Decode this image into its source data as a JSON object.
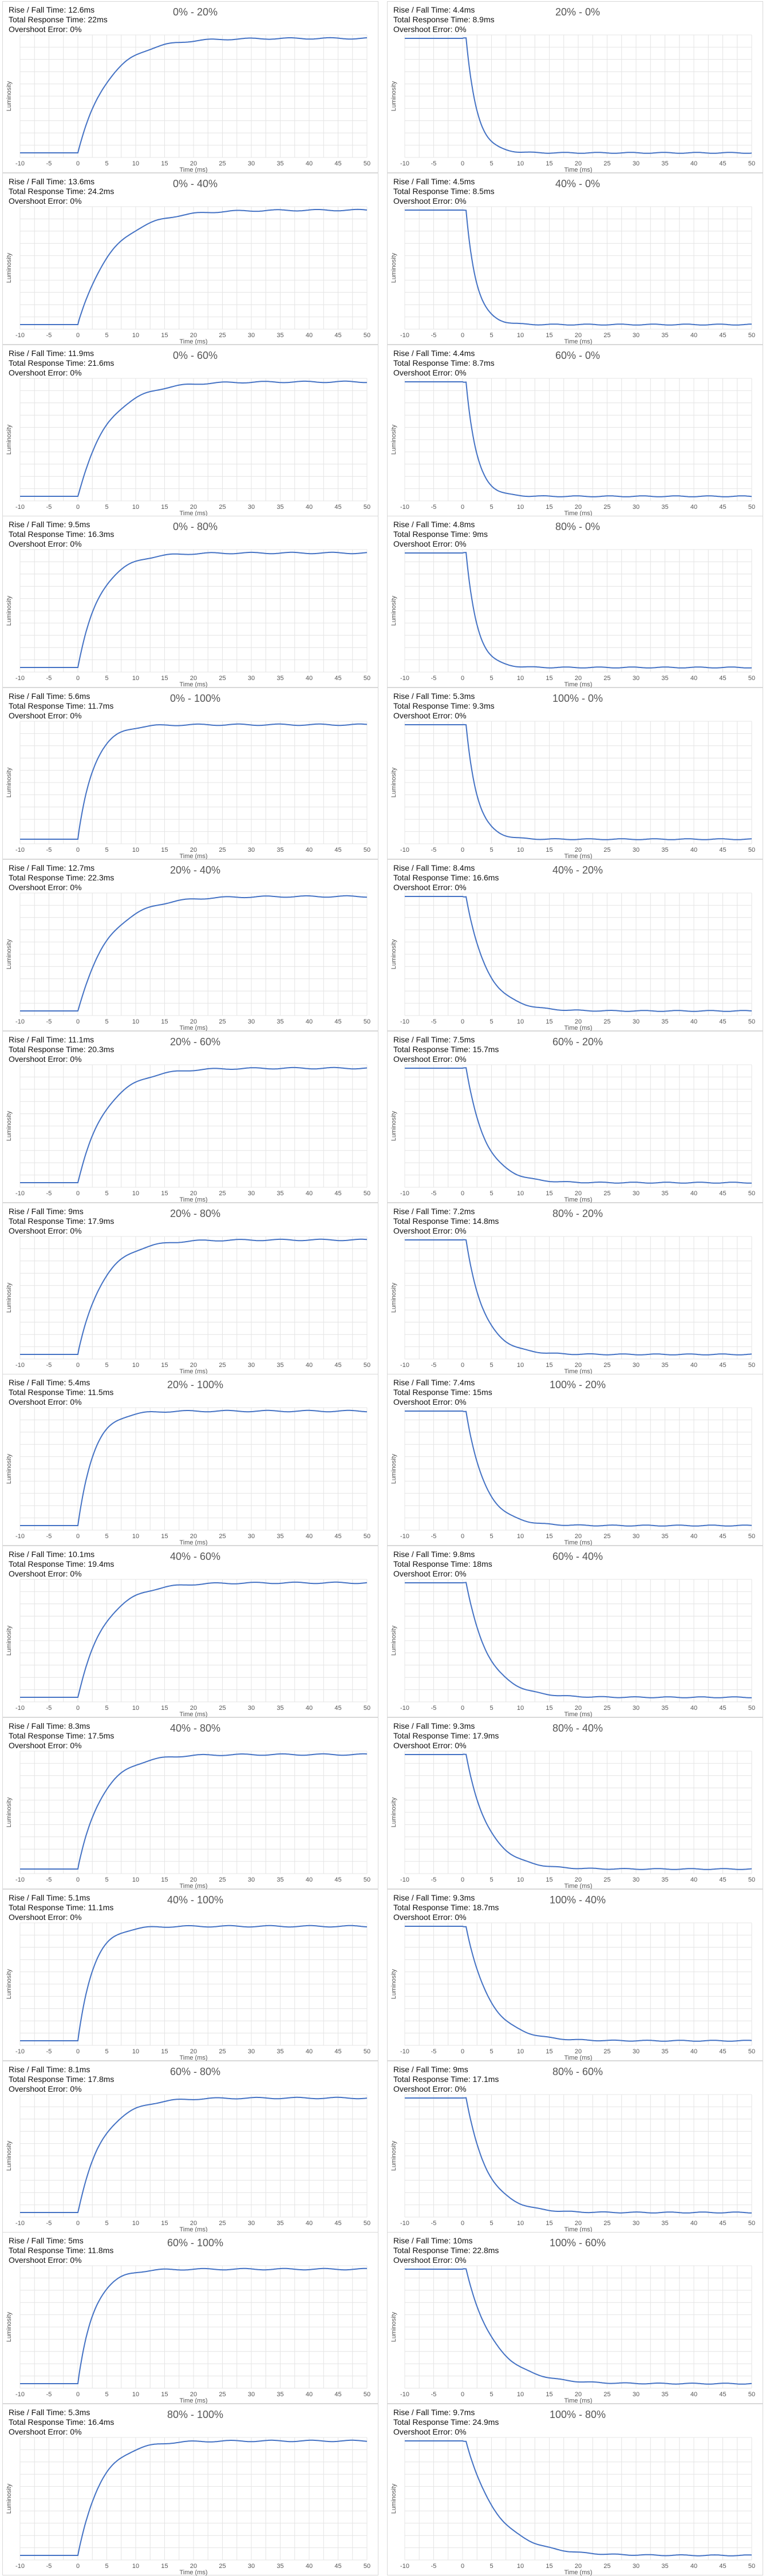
{
  "page": {
    "background": "#ffffff"
  },
  "style": {
    "line_color": "#4472c4",
    "grid_color": "#e4e4e4"
  },
  "stat_labels": {
    "rise_fall": "Rise / Fall Time: ",
    "total": "Total Response Time: ",
    "overshoot": "Overshoot Error: "
  },
  "chart_data": [
    {
      "type": "line",
      "title": "0% - 20%",
      "direction": "rise",
      "rise_fall_time": "12.6ms",
      "total_response_time": "22ms",
      "overshoot_error": "0%",
      "xlabel": "Time (ms)",
      "ylabel": "Luminosity",
      "xlim": [
        -10,
        50
      ],
      "xticks": [
        -10,
        -5,
        0,
        5,
        10,
        15,
        20,
        25,
        30,
        35,
        40,
        45,
        50
      ]
    },
    {
      "type": "line",
      "title": "20% - 0%",
      "direction": "fall",
      "rise_fall_time": "4.4ms",
      "total_response_time": "8.9ms",
      "overshoot_error": "0%",
      "xlabel": "Time (ms)",
      "ylabel": "Luminosity",
      "xlim": [
        -10,
        50
      ],
      "xticks": [
        -10,
        -5,
        0,
        5,
        10,
        15,
        20,
        25,
        30,
        35,
        40,
        45,
        50
      ]
    },
    {
      "type": "line",
      "title": "0% - 40%",
      "direction": "rise",
      "rise_fall_time": "13.6ms",
      "total_response_time": "24.2ms",
      "overshoot_error": "0%",
      "xlabel": "Time (ms)",
      "ylabel": "Luminosity",
      "xlim": [
        -10,
        50
      ],
      "xticks": [
        -10,
        -5,
        0,
        5,
        10,
        15,
        20,
        25,
        30,
        35,
        40,
        45,
        50
      ]
    },
    {
      "type": "line",
      "title": "40% - 0%",
      "direction": "fall",
      "rise_fall_time": "4.5ms",
      "total_response_time": "8.5ms",
      "overshoot_error": "0%",
      "xlabel": "Time (ms)",
      "ylabel": "Luminosity",
      "xlim": [
        -10,
        50
      ],
      "xticks": [
        -10,
        -5,
        0,
        5,
        10,
        15,
        20,
        25,
        30,
        35,
        40,
        45,
        50
      ]
    },
    {
      "type": "line",
      "title": "0% - 60%",
      "direction": "rise",
      "rise_fall_time": "11.9ms",
      "total_response_time": "21.6ms",
      "overshoot_error": "0%",
      "xlabel": "Time (ms)",
      "ylabel": "Luminosity",
      "xlim": [
        -10,
        50
      ],
      "xticks": [
        -10,
        -5,
        0,
        5,
        10,
        15,
        20,
        25,
        30,
        35,
        40,
        45,
        50
      ]
    },
    {
      "type": "line",
      "title": "60% - 0%",
      "direction": "fall",
      "rise_fall_time": "4.4ms",
      "total_response_time": "8.7ms",
      "overshoot_error": "0%",
      "xlabel": "Time (ms)",
      "ylabel": "Luminosity",
      "xlim": [
        -10,
        50
      ],
      "xticks": [
        -10,
        -5,
        0,
        5,
        10,
        15,
        20,
        25,
        30,
        35,
        40,
        45,
        50
      ]
    },
    {
      "type": "line",
      "title": "0% - 80%",
      "direction": "rise",
      "rise_fall_time": "9.5ms",
      "total_response_time": "16.3ms",
      "overshoot_error": "0%",
      "xlabel": "Time (ms)",
      "ylabel": "Luminosity",
      "xlim": [
        -10,
        50
      ],
      "xticks": [
        -10,
        -5,
        0,
        5,
        10,
        15,
        20,
        25,
        30,
        35,
        40,
        45,
        50
      ]
    },
    {
      "type": "line",
      "title": "80% - 0%",
      "direction": "fall",
      "rise_fall_time": "4.8ms",
      "total_response_time": "9ms",
      "overshoot_error": "0%",
      "xlabel": "Time (ms)",
      "ylabel": "Luminosity",
      "xlim": [
        -10,
        50
      ],
      "xticks": [
        -10,
        -5,
        0,
        5,
        10,
        15,
        20,
        25,
        30,
        35,
        40,
        45,
        50
      ]
    },
    {
      "type": "line",
      "title": "0% - 100%",
      "direction": "rise",
      "rise_fall_time": "5.6ms",
      "total_response_time": "11.7ms",
      "overshoot_error": "0%",
      "xlabel": "Time (ms)",
      "ylabel": "Luminosity",
      "xlim": [
        -10,
        50
      ],
      "xticks": [
        -10,
        -5,
        0,
        5,
        10,
        15,
        20,
        25,
        30,
        35,
        40,
        45,
        50
      ]
    },
    {
      "type": "line",
      "title": "100% - 0%",
      "direction": "fall",
      "rise_fall_time": "5.3ms",
      "total_response_time": "9.3ms",
      "overshoot_error": "0%",
      "xlabel": "Time (ms)",
      "ylabel": "Luminosity",
      "xlim": [
        -10,
        50
      ],
      "xticks": [
        -10,
        -5,
        0,
        5,
        10,
        15,
        20,
        25,
        30,
        35,
        40,
        45,
        50
      ]
    },
    {
      "type": "line",
      "title": "20% - 40%",
      "direction": "rise",
      "rise_fall_time": "12.7ms",
      "total_response_time": "22.3ms",
      "overshoot_error": "0%",
      "xlabel": "Time (ms)",
      "ylabel": "Luminosity",
      "xlim": [
        -10,
        50
      ],
      "xticks": [
        -10,
        -5,
        0,
        5,
        10,
        15,
        20,
        25,
        30,
        35,
        40,
        45,
        50
      ]
    },
    {
      "type": "line",
      "title": "40% - 20%",
      "direction": "fall",
      "rise_fall_time": "8.4ms",
      "total_response_time": "16.6ms",
      "overshoot_error": "0%",
      "xlabel": "Time (ms)",
      "ylabel": "Luminosity",
      "xlim": [
        -10,
        50
      ],
      "xticks": [
        -10,
        -5,
        0,
        5,
        10,
        15,
        20,
        25,
        30,
        35,
        40,
        45,
        50
      ]
    },
    {
      "type": "line",
      "title": "20% - 60%",
      "direction": "rise",
      "rise_fall_time": "11.1ms",
      "total_response_time": "20.3ms",
      "overshoot_error": "0%",
      "xlabel": "Time (ms)",
      "ylabel": "Luminosity",
      "xlim": [
        -10,
        50
      ],
      "xticks": [
        -10,
        -5,
        0,
        5,
        10,
        15,
        20,
        25,
        30,
        35,
        40,
        45,
        50
      ]
    },
    {
      "type": "line",
      "title": "60% - 20%",
      "direction": "fall",
      "rise_fall_time": "7.5ms",
      "total_response_time": "15.7ms",
      "overshoot_error": "0%",
      "xlabel": "Time (ms)",
      "ylabel": "Luminosity",
      "xlim": [
        -10,
        50
      ],
      "xticks": [
        -10,
        -5,
        0,
        5,
        10,
        15,
        20,
        25,
        30,
        35,
        40,
        45,
        50
      ]
    },
    {
      "type": "line",
      "title": "20% - 80%",
      "direction": "rise",
      "rise_fall_time": "9ms",
      "total_response_time": "17.9ms",
      "overshoot_error": "0%",
      "xlabel": "Time (ms)",
      "ylabel": "Luminosity",
      "xlim": [
        -10,
        50
      ],
      "xticks": [
        -10,
        -5,
        0,
        5,
        10,
        15,
        20,
        25,
        30,
        35,
        40,
        45,
        50
      ]
    },
    {
      "type": "line",
      "title": "80% - 20%",
      "direction": "fall",
      "rise_fall_time": "7.2ms",
      "total_response_time": "14.8ms",
      "overshoot_error": "0%",
      "xlabel": "Time (ms)",
      "ylabel": "Luminosity",
      "xlim": [
        -10,
        50
      ],
      "xticks": [
        -10,
        -5,
        0,
        5,
        10,
        15,
        20,
        25,
        30,
        35,
        40,
        45,
        50
      ]
    },
    {
      "type": "line",
      "title": "20% - 100%",
      "direction": "rise",
      "rise_fall_time": "5.4ms",
      "total_response_time": "11.5ms",
      "overshoot_error": "0%",
      "xlabel": "Time (ms)",
      "ylabel": "Luminosity",
      "xlim": [
        -10,
        50
      ],
      "xticks": [
        -10,
        -5,
        0,
        5,
        10,
        15,
        20,
        25,
        30,
        35,
        40,
        45,
        50
      ]
    },
    {
      "type": "line",
      "title": "100% - 20%",
      "direction": "fall",
      "rise_fall_time": "7.4ms",
      "total_response_time": "15ms",
      "overshoot_error": "0%",
      "xlabel": "Time (ms)",
      "ylabel": "Luminosity",
      "xlim": [
        -10,
        50
      ],
      "xticks": [
        -10,
        -5,
        0,
        5,
        10,
        15,
        20,
        25,
        30,
        35,
        40,
        45,
        50
      ]
    },
    {
      "type": "line",
      "title": "40% - 60%",
      "direction": "rise",
      "rise_fall_time": "10.1ms",
      "total_response_time": "19.4ms",
      "overshoot_error": "0%",
      "xlabel": "Time (ms)",
      "ylabel": "Luminosity",
      "xlim": [
        -10,
        50
      ],
      "xticks": [
        -10,
        -5,
        0,
        5,
        10,
        15,
        20,
        25,
        30,
        35,
        40,
        45,
        50
      ]
    },
    {
      "type": "line",
      "title": "60% - 40%",
      "direction": "fall",
      "rise_fall_time": "9.8ms",
      "total_response_time": "18ms",
      "overshoot_error": "0%",
      "xlabel": "Time (ms)",
      "ylabel": "Luminosity",
      "xlim": [
        -10,
        50
      ],
      "xticks": [
        -10,
        -5,
        0,
        5,
        10,
        15,
        20,
        25,
        30,
        35,
        40,
        45,
        50
      ]
    },
    {
      "type": "line",
      "title": "40% - 80%",
      "direction": "rise",
      "rise_fall_time": "8.3ms",
      "total_response_time": "17.5ms",
      "overshoot_error": "0%",
      "xlabel": "Time (ms)",
      "ylabel": "Luminosity",
      "xlim": [
        -10,
        50
      ],
      "xticks": [
        -10,
        -5,
        0,
        5,
        10,
        15,
        20,
        25,
        30,
        35,
        40,
        45,
        50
      ]
    },
    {
      "type": "line",
      "title": "80% - 40%",
      "direction": "fall",
      "rise_fall_time": "9.3ms",
      "total_response_time": "17.9ms",
      "overshoot_error": "0%",
      "xlabel": "Time (ms)",
      "ylabel": "Luminosity",
      "xlim": [
        -10,
        50
      ],
      "xticks": [
        -10,
        -5,
        0,
        5,
        10,
        15,
        20,
        25,
        30,
        35,
        40,
        45,
        50
      ]
    },
    {
      "type": "line",
      "title": "40% - 100%",
      "direction": "rise",
      "rise_fall_time": "5.1ms",
      "total_response_time": "11.1ms",
      "overshoot_error": "0%",
      "xlabel": "Time (ms)",
      "ylabel": "Luminosity",
      "xlim": [
        -10,
        50
      ],
      "xticks": [
        -10,
        -5,
        0,
        5,
        10,
        15,
        20,
        25,
        30,
        35,
        40,
        45,
        50
      ]
    },
    {
      "type": "line",
      "title": "100% - 40%",
      "direction": "fall",
      "rise_fall_time": "9.3ms",
      "total_response_time": "18.7ms",
      "overshoot_error": "0%",
      "xlabel": "Time (ms)",
      "ylabel": "Luminosity",
      "xlim": [
        -10,
        50
      ],
      "xticks": [
        -10,
        -5,
        0,
        5,
        10,
        15,
        20,
        25,
        30,
        35,
        40,
        45,
        50
      ]
    },
    {
      "type": "line",
      "title": "60% - 80%",
      "direction": "rise",
      "rise_fall_time": "8.1ms",
      "total_response_time": "17.8ms",
      "overshoot_error": "0%",
      "xlabel": "Time (ms)",
      "ylabel": "Luminosity",
      "xlim": [
        -10,
        50
      ],
      "xticks": [
        -10,
        -5,
        0,
        5,
        10,
        15,
        20,
        25,
        30,
        35,
        40,
        45,
        50
      ]
    },
    {
      "type": "line",
      "title": "80% - 60%",
      "direction": "fall",
      "rise_fall_time": "9ms",
      "total_response_time": "17.1ms",
      "overshoot_error": "0%",
      "xlabel": "Time (ms)",
      "ylabel": "Luminosity",
      "xlim": [
        -10,
        50
      ],
      "xticks": [
        -10,
        -5,
        0,
        5,
        10,
        15,
        20,
        25,
        30,
        35,
        40,
        45,
        50
      ]
    },
    {
      "type": "line",
      "title": "60% - 100%",
      "direction": "rise",
      "rise_fall_time": "5ms",
      "total_response_time": "11.8ms",
      "overshoot_error": "0%",
      "xlabel": "Time (ms)",
      "ylabel": "Luminosity",
      "xlim": [
        -10,
        50
      ],
      "xticks": [
        -10,
        -5,
        0,
        5,
        10,
        15,
        20,
        25,
        30,
        35,
        40,
        45,
        50
      ]
    },
    {
      "type": "line",
      "title": "100% - 60%",
      "direction": "fall",
      "rise_fall_time": "10ms",
      "total_response_time": "22.8ms",
      "overshoot_error": "0%",
      "xlabel": "Time (ms)",
      "ylabel": "Luminosity",
      "xlim": [
        -10,
        50
      ],
      "xticks": [
        -10,
        -5,
        0,
        5,
        10,
        15,
        20,
        25,
        30,
        35,
        40,
        45,
        50
      ]
    },
    {
      "type": "line",
      "title": "80% - 100%",
      "direction": "rise",
      "rise_fall_time": "5.3ms",
      "total_response_time": "16.4ms",
      "overshoot_error": "0%",
      "xlabel": "Time (ms)",
      "ylabel": "Luminosity",
      "xlim": [
        -10,
        50
      ],
      "xticks": [
        -10,
        -5,
        0,
        5,
        10,
        15,
        20,
        25,
        30,
        35,
        40,
        45,
        50
      ]
    },
    {
      "type": "line",
      "title": "100% - 80%",
      "direction": "fall",
      "rise_fall_time": "9.7ms",
      "total_response_time": "24.9ms",
      "overshoot_error": "0%",
      "xlabel": "Time (ms)",
      "ylabel": "Luminosity",
      "xlim": [
        -10,
        50
      ],
      "xticks": [
        -10,
        -5,
        0,
        5,
        10,
        15,
        20,
        25,
        30,
        35,
        40,
        45,
        50
      ]
    }
  ]
}
